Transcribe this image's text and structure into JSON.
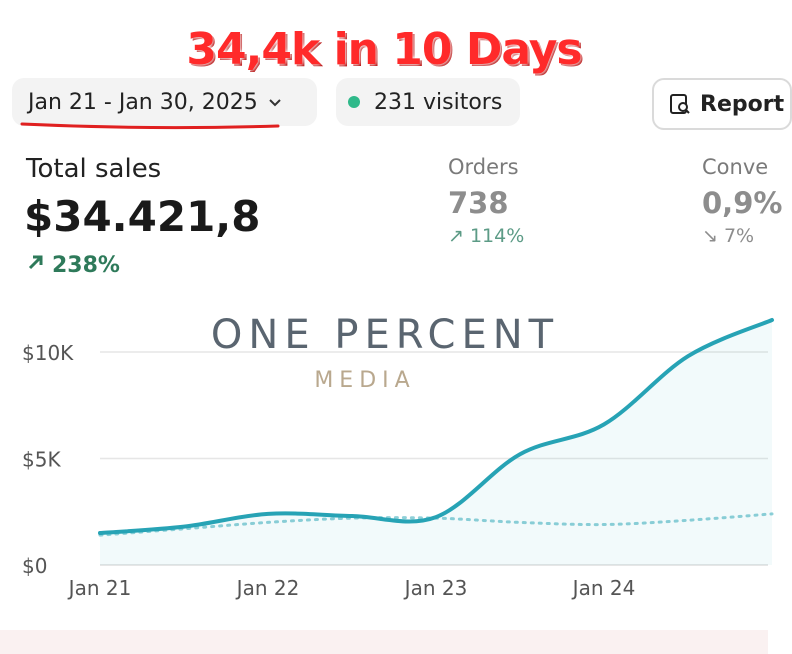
{
  "overlay": {
    "headline": "34,4k in 10 Days"
  },
  "toolbar": {
    "date_range": "Jan 21 - Jan 30, 2025",
    "visitors": "231 visitors",
    "report_label": "Report"
  },
  "metrics": {
    "total_sales": {
      "label": "Total sales",
      "value": "$34.421,8",
      "change": "238%"
    },
    "orders": {
      "label": "Orders",
      "value": "738",
      "change": "114%"
    },
    "conversion": {
      "label": "Conve",
      "value": "0,9%",
      "change": "7%"
    }
  },
  "watermark": {
    "line1": "ONE PERCENT",
    "line2": "MEDIA"
  },
  "colors": {
    "accent_line": "#27a3b5",
    "prev_line": "#8fd0d8",
    "grid": "#e6e6e6",
    "up": "#2e7a5a",
    "headline": "#ff2a2a"
  },
  "chart_data": {
    "type": "line",
    "x": [
      "Jan 21",
      "Jan 21.5",
      "Jan 22",
      "Jan 22.5",
      "Jan 23",
      "Jan 23.5",
      "Jan 24",
      "Jan 24.5",
      "Jan 25"
    ],
    "xticks": [
      "Jan 21",
      "Jan 22",
      "Jan 23",
      "Jan 24"
    ],
    "yticks": [
      "$0",
      "$5K",
      "$10K"
    ],
    "ylim": [
      0,
      11500
    ],
    "series": [
      {
        "values": [
          1500,
          1800,
          2400,
          2300,
          2250,
          5200,
          6600,
          9800,
          11500
        ]
      },
      {
        "values": [
          1400,
          1700,
          2000,
          2200,
          2200,
          2000,
          1900,
          2100,
          2400
        ]
      }
    ]
  }
}
